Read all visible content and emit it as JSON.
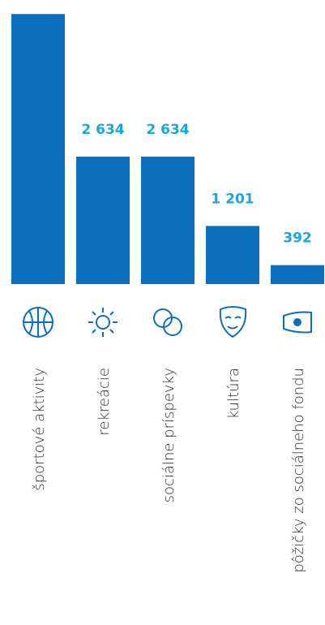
{
  "chart_data": {
    "type": "bar",
    "categories": [
      "športové aktivity",
      "rekreácie",
      "sociálne príspevky",
      "kultúra",
      "pôžičky zo sociálneho fondu"
    ],
    "values": [
      5580,
      2634,
      2634,
      1201,
      392
    ],
    "value_labels": [
      null,
      "2 634",
      "2 634",
      "1 201",
      "392"
    ],
    "color": "#0b6fbd",
    "label_color": "#1ba6e1",
    "ylim": [
      0,
      5870
    ]
  }
}
